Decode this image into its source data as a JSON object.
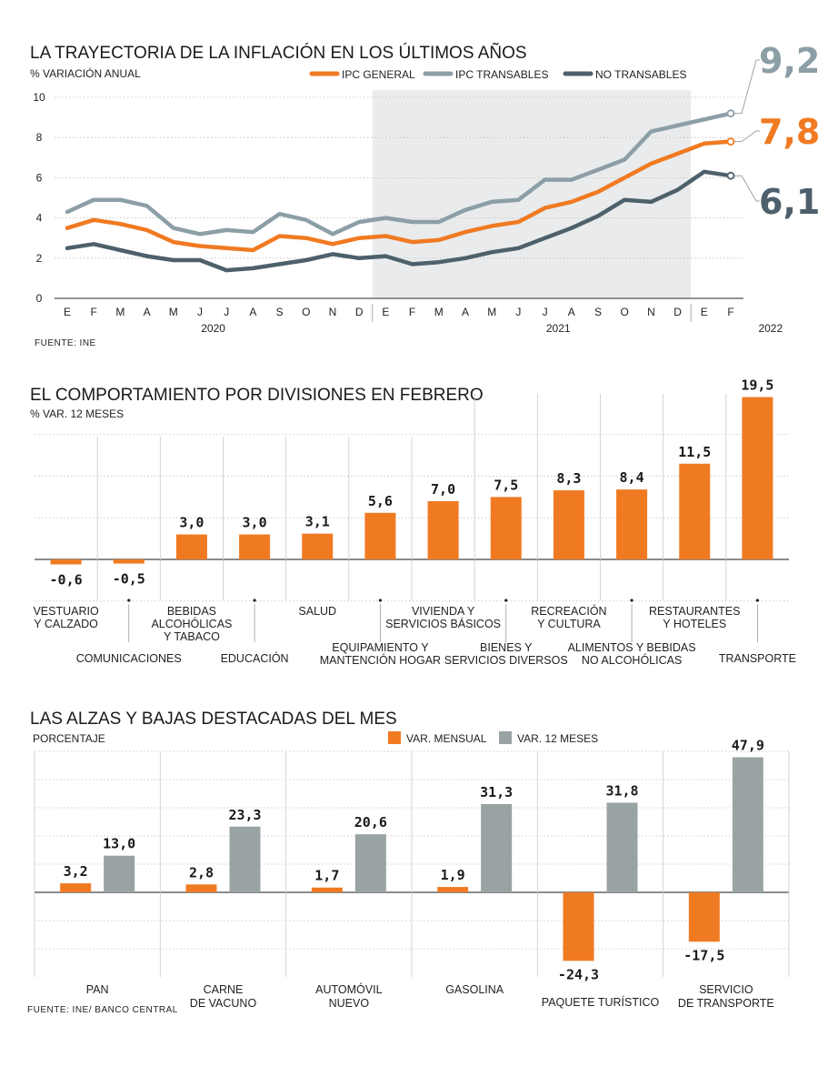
{
  "colors": {
    "general": "#f07a22",
    "transables": "#8c9ea6",
    "no_transables": "#4d606b",
    "grey_bar": "#99a3a4",
    "shade": "#e9ebec"
  },
  "chart_data": [
    {
      "type": "line",
      "title": "LA TRAYECTORIA DE LA INFLACIÓN EN LOS ÚLTIMOS AÑOS",
      "ylabel": "% VARIACIÓN ANUAL",
      "ylim": [
        0,
        10
      ],
      "yticks": [
        "0",
        "2",
        "4",
        "6",
        "8",
        "10"
      ],
      "months": [
        "E",
        "F",
        "M",
        "A",
        "M",
        "J",
        "J",
        "A",
        "S",
        "O",
        "N",
        "D",
        "E",
        "F",
        "M",
        "A",
        "M",
        "J",
        "J",
        "A",
        "S",
        "O",
        "N",
        "D",
        "E",
        "F"
      ],
      "years": [
        {
          "label": "2020",
          "at": 5.5
        },
        {
          "label": "2021",
          "at": 18.5
        },
        {
          "label": "2022",
          "at": 26.5
        }
      ],
      "shaded_range": [
        11.5,
        23.5
      ],
      "series": [
        {
          "name": "IPC TRANSABLES",
          "key": "transables",
          "end_label": "9,2",
          "values": [
            4.3,
            4.9,
            4.9,
            4.6,
            3.5,
            3.2,
            3.4,
            3.3,
            4.2,
            3.9,
            3.2,
            3.8,
            4.0,
            3.8,
            3.8,
            4.4,
            4.8,
            4.9,
            5.9,
            5.9,
            6.4,
            6.9,
            8.3,
            8.6,
            8.9,
            9.2
          ]
        },
        {
          "name": "IPC GENERAL",
          "key": "general",
          "end_label": "7,8",
          "values": [
            3.5,
            3.9,
            3.7,
            3.4,
            2.8,
            2.6,
            2.5,
            2.4,
            3.1,
            3.0,
            2.7,
            3.0,
            3.1,
            2.8,
            2.9,
            3.3,
            3.6,
            3.8,
            4.5,
            4.8,
            5.3,
            6.0,
            6.7,
            7.2,
            7.7,
            7.8
          ]
        },
        {
          "name": "NO TRANSABLES",
          "key": "no_transables",
          "end_label": "6,1",
          "values": [
            2.5,
            2.7,
            2.4,
            2.1,
            1.9,
            1.9,
            1.4,
            1.5,
            1.7,
            1.9,
            2.2,
            2.0,
            2.1,
            1.7,
            1.8,
            2.0,
            2.3,
            2.5,
            3.0,
            3.5,
            4.1,
            4.9,
            4.8,
            5.4,
            6.3,
            6.1
          ]
        }
      ],
      "legend": [
        "IPC GENERAL",
        "IPC TRANSABLES",
        "NO TRANSABLES"
      ],
      "source": "FUENTE: INE"
    },
    {
      "type": "bar",
      "title": "EL COMPORTAMIENTO POR DIVISIONES EN FEBRERO",
      "ylabel": "% VAR. 12 MESES",
      "ylim": [
        -3,
        20
      ],
      "categories": [
        {
          "label": [
            "VESTUARIO",
            "Y CALZADO"
          ],
          "value": -0.6,
          "text": "-0,6",
          "low": false
        },
        {
          "label": [
            "COMUNICACIONES"
          ],
          "value": -0.5,
          "text": "-0,5",
          "low": true
        },
        {
          "label": [
            "BEBIDAS",
            "ALCOHÓLICAS",
            "Y TABACO"
          ],
          "value": 3.0,
          "text": "3,0",
          "low": false
        },
        {
          "label": [
            "EDUCACIÓN"
          ],
          "value": 3.0,
          "text": "3,0",
          "low": true
        },
        {
          "label": [
            "SALUD"
          ],
          "value": 3.1,
          "text": "3,1",
          "low": false
        },
        {
          "label": [
            "EQUIPAMIENTO Y",
            "MANTENCIÓN HOGAR"
          ],
          "value": 5.6,
          "text": "5,6",
          "low": true
        },
        {
          "label": [
            "VIVIENDA Y",
            "SERVICIOS BÁSICOS"
          ],
          "value": 7.0,
          "text": "7,0",
          "low": false
        },
        {
          "label": [
            "BIENES Y",
            "SERVICIOS DIVERSOS"
          ],
          "value": 7.5,
          "text": "7,5",
          "low": true
        },
        {
          "label": [
            "RECREACIÓN",
            "Y CULTURA"
          ],
          "value": 8.3,
          "text": "8,3",
          "low": false
        },
        {
          "label": [
            "ALIMENTOS Y BEBIDAS",
            "NO ALCOHÓLICAS"
          ],
          "value": 8.4,
          "text": "8,4",
          "low": true
        },
        {
          "label": [
            "RESTAURANTES",
            "Y HOTELES"
          ],
          "value": 11.5,
          "text": "11,5",
          "low": false
        },
        {
          "label": [
            "TRANSPORTE"
          ],
          "value": 19.5,
          "text": "19,5",
          "low": true
        }
      ]
    },
    {
      "type": "bar",
      "title": "LAS ALZAS Y BAJAS DESTACADAS DEL MES",
      "ylabel": "PORCENTAJE",
      "ylim": [
        -30,
        50
      ],
      "legend": [
        "VAR. MENSUAL",
        "VAR. 12 MESES"
      ],
      "groups": [
        {
          "label": [
            "PAN"
          ],
          "mensual": 3.2,
          "mensual_text": "3,2",
          "anual": 13.0,
          "anual_text": "13,0"
        },
        {
          "label": [
            "CARNE",
            "DE VACUNO"
          ],
          "mensual": 2.8,
          "mensual_text": "2,8",
          "anual": 23.3,
          "anual_text": "23,3"
        },
        {
          "label": [
            "AUTOMÓVIL",
            "NUEVO"
          ],
          "mensual": 1.7,
          "mensual_text": "1,7",
          "anual": 20.6,
          "anual_text": "20,6"
        },
        {
          "label": [
            "GASOLINA"
          ],
          "mensual": 1.9,
          "mensual_text": "1,9",
          "anual": 31.3,
          "anual_text": "31,3"
        },
        {
          "label": [
            "PAQUETE TURÍSTICO"
          ],
          "mensual": -24.3,
          "mensual_text": "-24,3",
          "anual": 31.8,
          "anual_text": "31,8"
        },
        {
          "label": [
            "SERVICIO",
            "DE TRANSPORTE"
          ],
          "mensual": -17.5,
          "mensual_text": "-17,5",
          "anual": 47.9,
          "anual_text": "47,9"
        }
      ],
      "source": "FUENTE: INE/ BANCO CENTRAL"
    }
  ]
}
